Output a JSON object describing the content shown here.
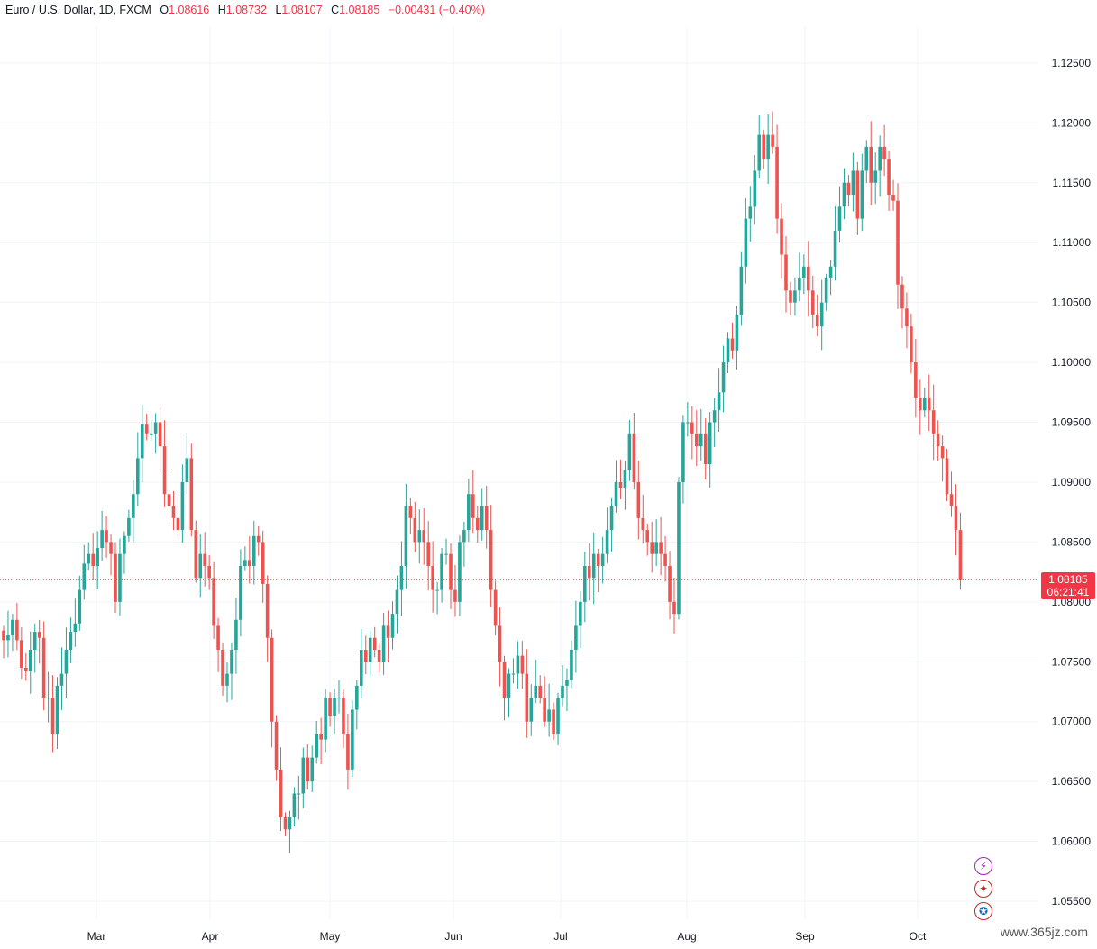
{
  "legend": {
    "symbol": "Euro / U.S. Dollar, 1D, FXCM",
    "o_label": "O",
    "o_value": "1.08616",
    "h_label": "H",
    "h_value": "1.08732",
    "l_label": "L",
    "l_value": "1.08107",
    "c_label": "C",
    "c_value": "1.08185",
    "change": "−0.00431 (−0.40%)"
  },
  "last_price": {
    "price": "1.08185",
    "countdown": "06:21:41"
  },
  "watermark": "www.365jz.com",
  "colors": {
    "up": "#26a69a",
    "down": "#ef5350",
    "grid": "#f0f3fa",
    "text": "#131722",
    "last": "#f23645"
  },
  "chart_data": {
    "type": "candlestick",
    "ylim": [
      1.0535,
      1.128
    ],
    "y_ticks": [
      "1.12500",
      "1.12000",
      "1.11500",
      "1.11000",
      "1.10500",
      "1.10000",
      "1.09500",
      "1.09000",
      "1.08500",
      "1.08000",
      "1.07500",
      "1.07000",
      "1.06500",
      "1.06000",
      "1.05500"
    ],
    "x_ticks": [
      "Mar",
      "Apr",
      "May",
      "Jun",
      "Jul",
      "Aug",
      "Sep",
      "Oct"
    ],
    "close_series": [
      1.0768,
      1.0772,
      1.0785,
      1.0768,
      1.0745,
      1.0742,
      1.076,
      1.0775,
      1.077,
      1.072,
      1.072,
      1.069,
      1.073,
      1.074,
      1.076,
      1.0775,
      1.0782,
      1.081,
      1.0832,
      1.084,
      1.083,
      1.0845,
      1.086,
      1.085,
      1.084,
      1.08,
      1.084,
      1.0855,
      1.087,
      1.089,
      1.092,
      1.0948,
      1.094,
      1.094,
      1.095,
      1.093,
      1.089,
      1.088,
      1.087,
      1.086,
      1.09,
      1.092,
      1.086,
      1.082,
      1.084,
      1.083,
      1.082,
      1.078,
      1.076,
      1.073,
      1.074,
      1.076,
      1.0785,
      1.083,
      1.0835,
      1.083,
      1.0855,
      1.085,
      1.0815,
      1.077,
      1.07,
      1.066,
      1.062,
      1.061,
      1.062,
      1.064,
      1.064,
      1.067,
      1.065,
      1.067,
      1.069,
      1.0685,
      1.072,
      1.0705,
      1.072,
      1.072,
      1.069,
      1.066,
      1.071,
      1.073,
      1.076,
      1.075,
      1.077,
      1.076,
      1.075,
      1.078,
      1.077,
      1.079,
      1.081,
      1.083,
      1.088,
      1.087,
      1.085,
      1.086,
      1.085,
      1.083,
      1.081,
      1.081,
      1.084,
      1.084,
      1.081,
      1.08,
      1.085,
      1.086,
      1.089,
      1.087,
      1.086,
      1.088,
      1.086,
      1.081,
      1.078,
      1.075,
      1.072,
      1.074,
      1.074,
      1.0755,
      1.074,
      1.07,
      1.072,
      1.073,
      1.072,
      1.07,
      1.071,
      1.069,
      1.072,
      1.073,
      1.0735,
      1.076,
      1.078,
      1.08,
      1.083,
      1.082,
      1.084,
      1.083,
      1.084,
      1.086,
      1.088,
      1.09,
      1.0895,
      1.091,
      1.094,
      1.09,
      1.087,
      1.086,
      1.085,
      1.084,
      1.085,
      1.084,
      1.083,
      1.08,
      1.079,
      1.09,
      1.095,
      1.095,
      1.094,
      1.093,
      1.094,
      1.0915,
      1.095,
      1.096,
      1.0975,
      1.1,
      1.102,
      1.101,
      1.104,
      1.108,
      1.112,
      1.113,
      1.116,
      1.119,
      1.117,
      1.119,
      1.118,
      1.112,
      1.109,
      1.106,
      1.105,
      1.106,
      1.107,
      1.108,
      1.106,
      1.104,
      1.103,
      1.105,
      1.107,
      1.108,
      1.111,
      1.113,
      1.115,
      1.114,
      1.116,
      1.112,
      1.116,
      1.118,
      1.115,
      1.116,
      1.118,
      1.117,
      1.114,
      1.1135,
      1.1065,
      1.1045,
      1.103,
      1.1,
      1.097,
      1.096,
      1.097,
      1.096,
      1.094,
      1.093,
      1.092,
      1.089,
      1.088,
      1.086,
      1.0818
    ]
  }
}
